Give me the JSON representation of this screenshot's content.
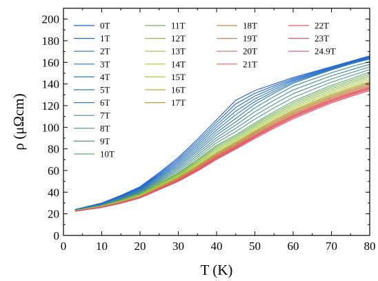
{
  "chart_data": {
    "type": "line",
    "xlabel": "T (K)",
    "ylabel": "ρ (μΩcm)",
    "xlim": [
      0,
      80
    ],
    "ylim": [
      0,
      210
    ],
    "xticks": [
      0,
      10,
      20,
      30,
      40,
      50,
      60,
      70,
      80
    ],
    "yticks": [
      0,
      20,
      40,
      60,
      80,
      100,
      120,
      140,
      160,
      180,
      200
    ],
    "grid": false,
    "legend_position": "top-left, inside, 4 columns",
    "x": [
      3,
      10,
      15,
      20,
      25,
      30,
      35,
      40,
      45,
      50,
      55,
      60,
      65,
      70,
      75,
      80
    ],
    "series": [
      {
        "name": "0T",
        "color": "#1f5fd6",
        "values": [
          24.0,
          30.0,
          37.0,
          45.0,
          58.0,
          72.0,
          89.0,
          107.0,
          125.0,
          134.0,
          140.0,
          146.0,
          151.0,
          156.0,
          161.0,
          166.0
        ]
      },
      {
        "name": "1T",
        "color": "#2165d1",
        "values": [
          23.9,
          29.7,
          36.5,
          44.3,
          57.0,
          70.6,
          87.1,
          104.6,
          121.6,
          131.4,
          138.3,
          144.9,
          150.2,
          155.4,
          160.5,
          165.4
        ]
      },
      {
        "name": "2T",
        "color": "#236bcb",
        "values": [
          23.8,
          29.5,
          36.1,
          43.7,
          56.0,
          69.2,
          85.2,
          102.2,
          118.3,
          128.9,
          136.6,
          143.8,
          149.4,
          154.8,
          160.0,
          164.8
        ]
      },
      {
        "name": "3T",
        "color": "#2670c4",
        "values": [
          23.7,
          29.2,
          35.6,
          43.0,
          55.1,
          67.8,
          83.4,
          99.9,
          114.9,
          126.3,
          134.9,
          142.8,
          148.6,
          154.2,
          159.5,
          164.2
        ]
      },
      {
        "name": "4T",
        "color": "#2b76bc",
        "values": [
          23.6,
          29.0,
          35.2,
          42.4,
          54.1,
          66.4,
          81.5,
          97.5,
          111.6,
          123.8,
          133.1,
          141.7,
          147.8,
          153.6,
          159.0,
          163.6
        ]
      },
      {
        "name": "5T",
        "color": "#307bb3",
        "values": [
          23.5,
          28.7,
          34.7,
          41.7,
          53.1,
          65.0,
          79.6,
          95.1,
          108.2,
          121.2,
          131.4,
          140.6,
          147.0,
          153.0,
          158.5,
          163.0
        ]
      },
      {
        "name": "6T",
        "color": "#3681a9",
        "values": [
          23.4,
          28.4,
          34.3,
          41.1,
          52.2,
          63.6,
          77.8,
          92.8,
          105.0,
          117.9,
          128.4,
          138.0,
          144.3,
          150.4,
          155.8,
          160.6
        ]
      },
      {
        "name": "7T",
        "color": "#3e889d",
        "values": [
          23.3,
          28.2,
          33.8,
          40.4,
          51.2,
          62.2,
          75.9,
          90.4,
          102.0,
          114.4,
          124.9,
          134.5,
          141.1,
          147.5,
          153.0,
          158.2
        ]
      },
      {
        "name": "8T",
        "color": "#488f8f",
        "values": [
          23.2,
          27.9,
          33.4,
          39.8,
          50.2,
          60.8,
          74.0,
          88.0,
          99.0,
          110.9,
          121.4,
          131.0,
          137.9,
          144.6,
          150.3,
          155.8
        ]
      },
      {
        "name": "9T",
        "color": "#559880",
        "values": [
          23.1,
          27.7,
          33.0,
          39.1,
          49.2,
          59.4,
          72.2,
          85.7,
          96.0,
          107.4,
          117.9,
          127.5,
          134.7,
          141.7,
          147.5,
          153.4
        ]
      },
      {
        "name": "10T",
        "color": "#63a46f",
        "values": [
          23.0,
          27.4,
          32.5,
          38.5,
          48.2,
          58.0,
          70.3,
          83.3,
          93.0,
          103.9,
          114.4,
          124.0,
          131.5,
          138.8,
          144.8,
          151.0
        ]
      },
      {
        "name": "11T",
        "color": "#74b15e",
        "values": [
          22.9,
          27.2,
          32.2,
          38.1,
          47.6,
          57.2,
          69.2,
          82.0,
          91.7,
          102.5,
          112.9,
          122.4,
          129.9,
          137.2,
          143.2,
          149.3
        ]
      },
      {
        "name": "12T",
        "color": "#86bd4f",
        "values": [
          22.8,
          27.1,
          31.9,
          37.7,
          47.0,
          56.4,
          68.2,
          80.7,
          90.5,
          101.2,
          111.4,
          120.9,
          128.3,
          135.6,
          141.6,
          147.6
        ]
      },
      {
        "name": "13T",
        "color": "#98c645",
        "values": [
          22.8,
          26.9,
          31.7,
          37.3,
          46.5,
          55.7,
          67.1,
          79.4,
          89.2,
          99.8,
          110.0,
          119.3,
          126.7,
          134.0,
          140.1,
          145.9
        ]
      },
      {
        "name": "14T",
        "color": "#a8c93e",
        "values": [
          22.7,
          26.8,
          31.4,
          36.9,
          45.9,
          54.9,
          66.1,
          78.1,
          88.0,
          98.5,
          108.5,
          117.8,
          125.1,
          132.4,
          138.5,
          144.2
        ]
      },
      {
        "name": "15T",
        "color": "#b4c13a",
        "values": [
          22.6,
          26.6,
          31.1,
          36.5,
          45.3,
          54.1,
          65.0,
          76.8,
          86.7,
          97.1,
          107.0,
          116.2,
          123.5,
          130.8,
          136.9,
          142.5
        ]
      },
      {
        "name": "16T",
        "color": "#baae3a",
        "values": [
          22.6,
          26.5,
          31.0,
          36.3,
          44.9,
          53.6,
          64.4,
          76.0,
          85.9,
          96.2,
          106.1,
          115.2,
          122.6,
          129.8,
          135.9,
          141.5
        ]
      },
      {
        "name": "17T",
        "color": "#bf9a44",
        "values": [
          22.6,
          26.4,
          30.8,
          36.0,
          44.6,
          53.1,
          63.7,
          75.3,
          85.1,
          95.4,
          105.2,
          114.3,
          121.6,
          128.9,
          134.9,
          140.5
        ]
      },
      {
        "name": "18T",
        "color": "#c58c52",
        "values": [
          22.5,
          26.3,
          30.6,
          35.8,
          44.2,
          52.6,
          63.1,
          74.5,
          84.3,
          94.5,
          104.2,
          113.3,
          120.7,
          127.9,
          134.0,
          139.5
        ]
      },
      {
        "name": "19T",
        "color": "#cc7e5a",
        "values": [
          22.5,
          26.2,
          30.5,
          35.5,
          43.9,
          52.1,
          62.4,
          73.8,
          83.5,
          93.7,
          103.3,
          112.4,
          119.7,
          127.0,
          133.0,
          138.5
        ]
      },
      {
        "name": "20T",
        "color": "#d5725d",
        "values": [
          22.5,
          26.1,
          30.3,
          35.3,
          43.5,
          51.6,
          61.8,
          73.0,
          82.7,
          92.8,
          102.4,
          111.4,
          118.8,
          126.0,
          132.0,
          137.5
        ]
      },
      {
        "name": "21T",
        "color": "#dc665e",
        "values": [
          22.4,
          26.0,
          30.2,
          35.1,
          43.2,
          51.2,
          61.3,
          72.4,
          82.0,
          92.1,
          101.6,
          110.6,
          118.0,
          125.2,
          131.2,
          136.7
        ]
      },
      {
        "name": "22T",
        "color": "#e25c62",
        "values": [
          22.4,
          26.0,
          30.0,
          34.9,
          42.9,
          50.8,
          60.8,
          71.8,
          81.4,
          91.4,
          100.9,
          109.8,
          117.2,
          124.4,
          130.4,
          135.9
        ]
      },
      {
        "name": "23T",
        "color": "#e65468",
        "values": [
          22.4,
          25.9,
          29.9,
          34.7,
          42.7,
          50.5,
          60.3,
          71.2,
          80.7,
          90.7,
          100.1,
          109.0,
          116.4,
          123.6,
          129.6,
          135.1
        ]
      },
      {
        "name": "24.9T",
        "color": "#e8486f",
        "values": [
          22.3,
          25.8,
          29.7,
          34.5,
          42.3,
          50.0,
          59.6,
          70.3,
          79.8,
          89.7,
          99.0,
          107.8,
          115.3,
          122.5,
          128.5,
          134.0
        ]
      }
    ]
  }
}
